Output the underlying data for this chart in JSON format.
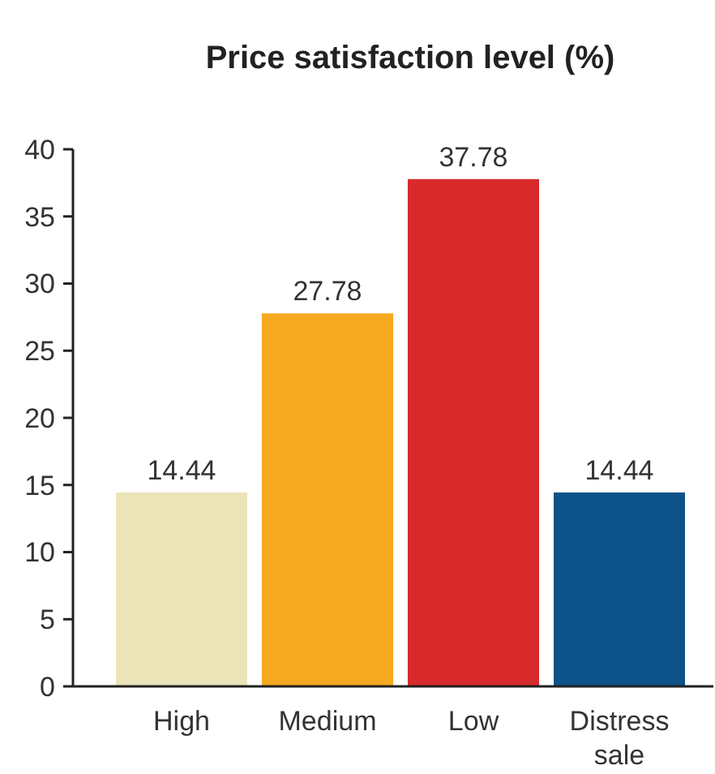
{
  "chart_data": {
    "type": "bar",
    "title": "Price satisfaction level (%)",
    "categories": [
      "High",
      "Medium",
      "Low",
      "Distress sale"
    ],
    "values": [
      14.44,
      27.78,
      37.78,
      14.44
    ],
    "colors": [
      "#ebe4b9",
      "#f6a81f",
      "#d8292b",
      "#0d5289"
    ],
    "ylim": [
      0,
      40
    ],
    "yticks": [
      0,
      5,
      10,
      15,
      20,
      25,
      30,
      35,
      40
    ],
    "data_labels": true
  }
}
